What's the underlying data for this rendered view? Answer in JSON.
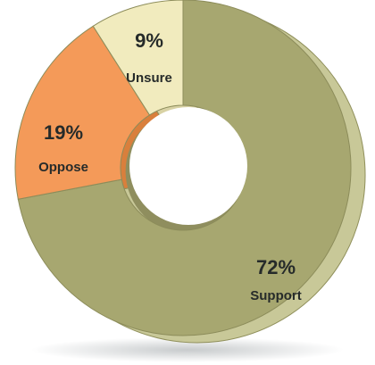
{
  "chart_data": {
    "type": "pie",
    "variant": "donut-3d",
    "slices": [
      {
        "name": "Support",
        "value": 72,
        "pct_label": "72%",
        "color": "#a7a770",
        "side_color": "#c8c898"
      },
      {
        "name": "Oppose",
        "value": 19,
        "pct_label": "19%",
        "color": "#f49a59",
        "side_color": "#d97f3c"
      },
      {
        "name": "Unsure",
        "value": 9,
        "pct_label": "9%",
        "color": "#f1ebbe",
        "side_color": "#d8d2a4"
      }
    ],
    "legend": "none"
  }
}
